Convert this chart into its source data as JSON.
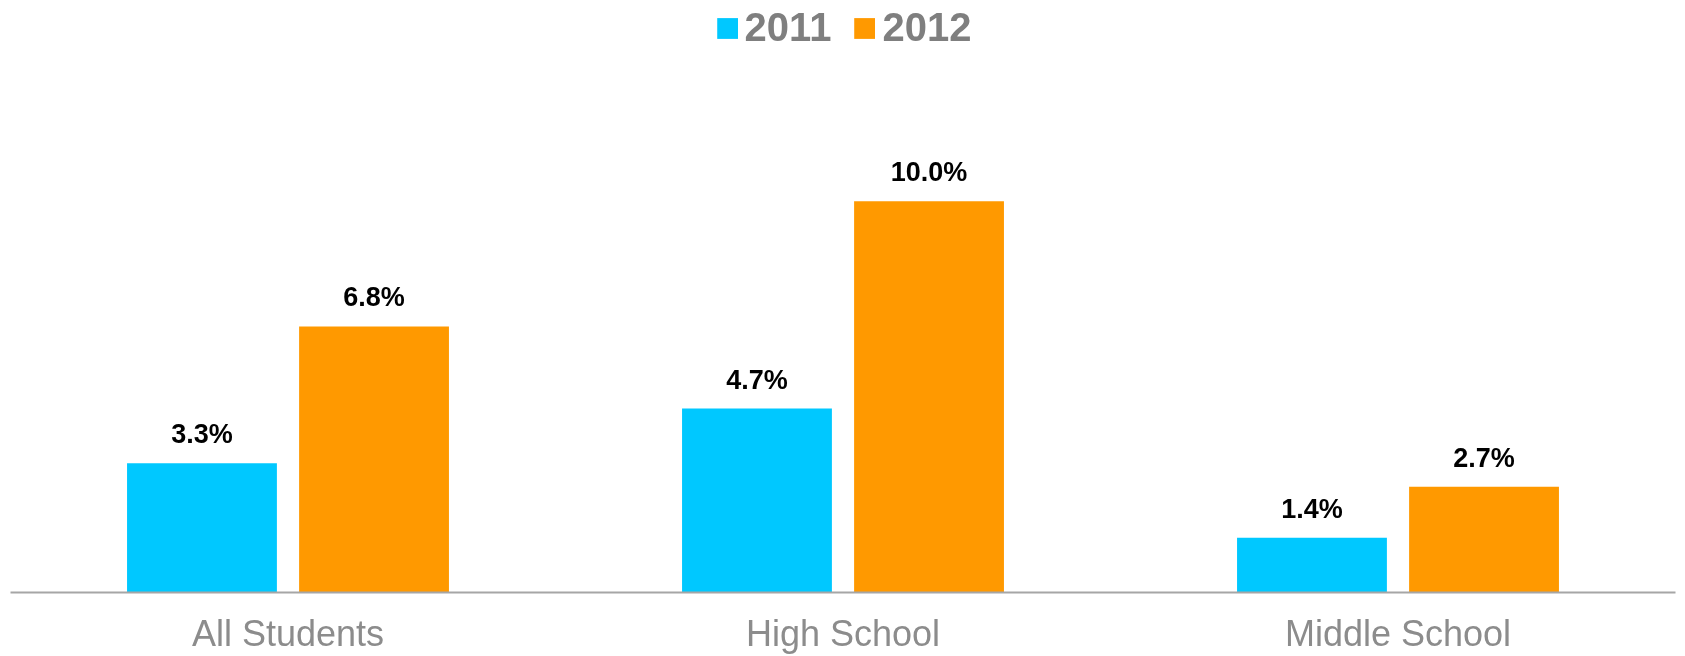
{
  "chart_data": {
    "type": "bar",
    "categories": [
      "All Students",
      "High School",
      "Middle School"
    ],
    "series": [
      {
        "name": "2011",
        "color": "#00c8ff",
        "values": [
          3.3,
          4.7,
          1.4
        ],
        "value_labels": [
          "3.3%",
          "4.7%",
          "1.4%"
        ]
      },
      {
        "name": "2012",
        "color": "#ff9900",
        "values": [
          6.8,
          10.0,
          2.7
        ],
        "value_labels": [
          "6.8%",
          "10.0%",
          "2.7%"
        ]
      }
    ],
    "legend": "top",
    "grid": false
  }
}
